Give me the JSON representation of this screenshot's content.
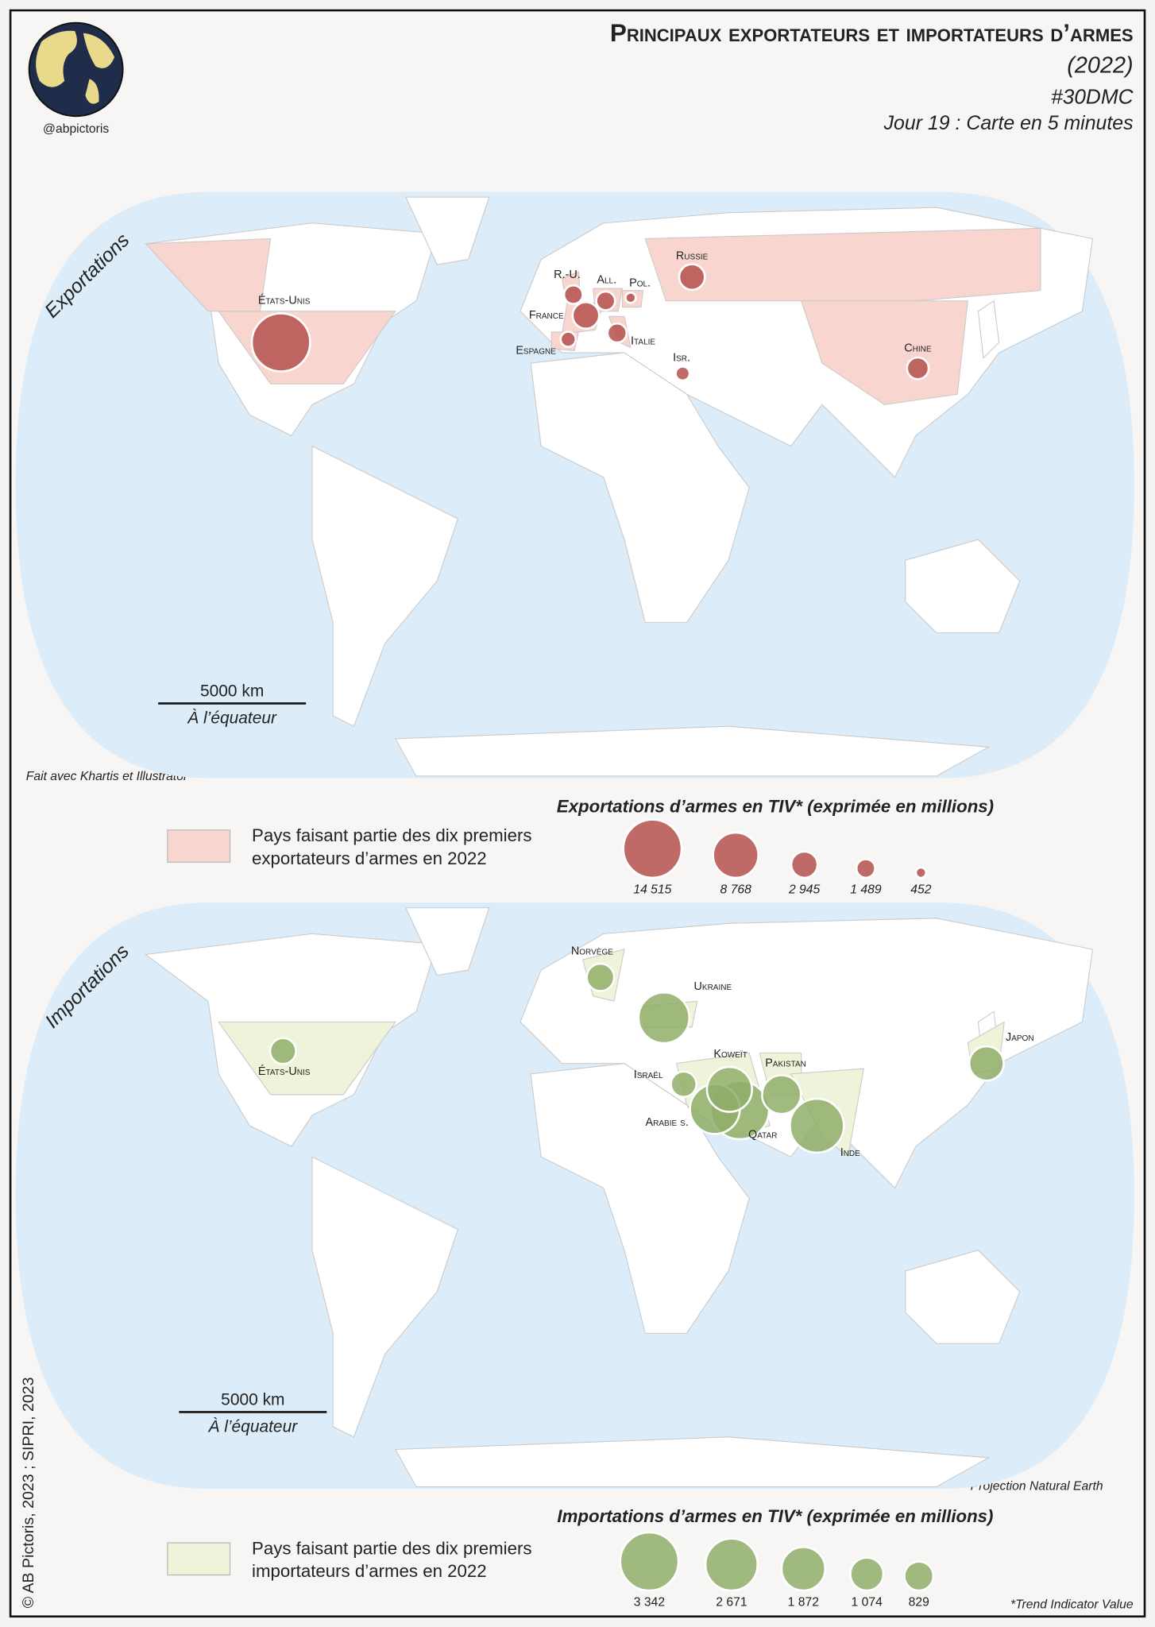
{
  "header": {
    "title": "Principaux exportateurs et importateurs d’armes",
    "year": "(2022)",
    "hashtag": "#30DMC",
    "subtitle": "Jour 19 : Carte en 5 minutes",
    "handle": "@abpictoris"
  },
  "maps": [
    {
      "label": "Exportations",
      "marker_color": "#b5514d",
      "highlight_color": "#f9d5d0",
      "scale_bar": {
        "distance": "5000 km",
        "note": "À l’équateur"
      },
      "countries": [
        {
          "name": "États-Unis",
          "value": 14515
        },
        {
          "name": "Russie",
          "value": 2820
        },
        {
          "name": "Chine",
          "value": 2017
        },
        {
          "name": "France",
          "value": 3021
        },
        {
          "name": "All.",
          "value": 1510
        },
        {
          "name": "R.-U.",
          "value": 1483
        },
        {
          "name": "Italie",
          "value": 1556
        },
        {
          "name": "Espagne",
          "value": 978
        },
        {
          "name": "Isr.",
          "value": 832
        },
        {
          "name": "Pol.",
          "value": 452
        }
      ],
      "legend": {
        "swatch_lines": [
          "Pays faisant partie des dix premiers",
          "exportateurs d’armes en 2022"
        ],
        "title": "Exportations d’armes en TIV* (exprimée en millions)",
        "sizes": [
          {
            "value": 14515,
            "label": "14 515"
          },
          {
            "value": 8768,
            "label": "8 768"
          },
          {
            "value": 2945,
            "label": "2 945"
          },
          {
            "value": 1489,
            "label": "1 489"
          },
          452
        ]
      }
    },
    {
      "label": "Importations",
      "marker_color": "#8fae68",
      "highlight_color": "#eef3d9",
      "scale_bar": {
        "distance": "5000 km",
        "note": "À l’équateur"
      },
      "countries": [
        {
          "name": "États-Unis",
          "value": 660
        },
        {
          "name": "Norvège",
          "value": 740
        },
        {
          "name": "Ukraine",
          "value": 2540
        },
        {
          "name": "Japon",
          "value": 1170
        },
        {
          "name": "Koweït",
          "value": 2000
        },
        {
          "name": "Pakistan",
          "value": 1480
        },
        {
          "name": "Israël",
          "value": 640
        },
        {
          "name": "Arabie s.",
          "value": 2440
        },
        {
          "name": "Qatar",
          "value": 3342
        },
        {
          "name": "Inde",
          "value": 2871
        }
      ],
      "legend": {
        "swatch_lines": [
          "Pays faisant partie des dix premiers",
          "importateurs d’armes en 2022"
        ],
        "title": "Importations d’armes en TIV* (exprimée en millions)",
        "sizes": [
          {
            "value": 3342,
            "label": "3 342"
          },
          {
            "value": 2671,
            "label": "2 671"
          },
          {
            "value": 1872,
            "label": "1 872"
          },
          {
            "value": 1074,
            "label": "1 074"
          },
          829
        ]
      }
    }
  ],
  "notes": {
    "tools": "Fait avec Khartis et Illustrator",
    "projection": "Projection Natural Earth",
    "tiv": "*Trend Indicator Value",
    "copyright": "© AB Pictoris, 2023 ; SIPRI, 2023"
  }
}
